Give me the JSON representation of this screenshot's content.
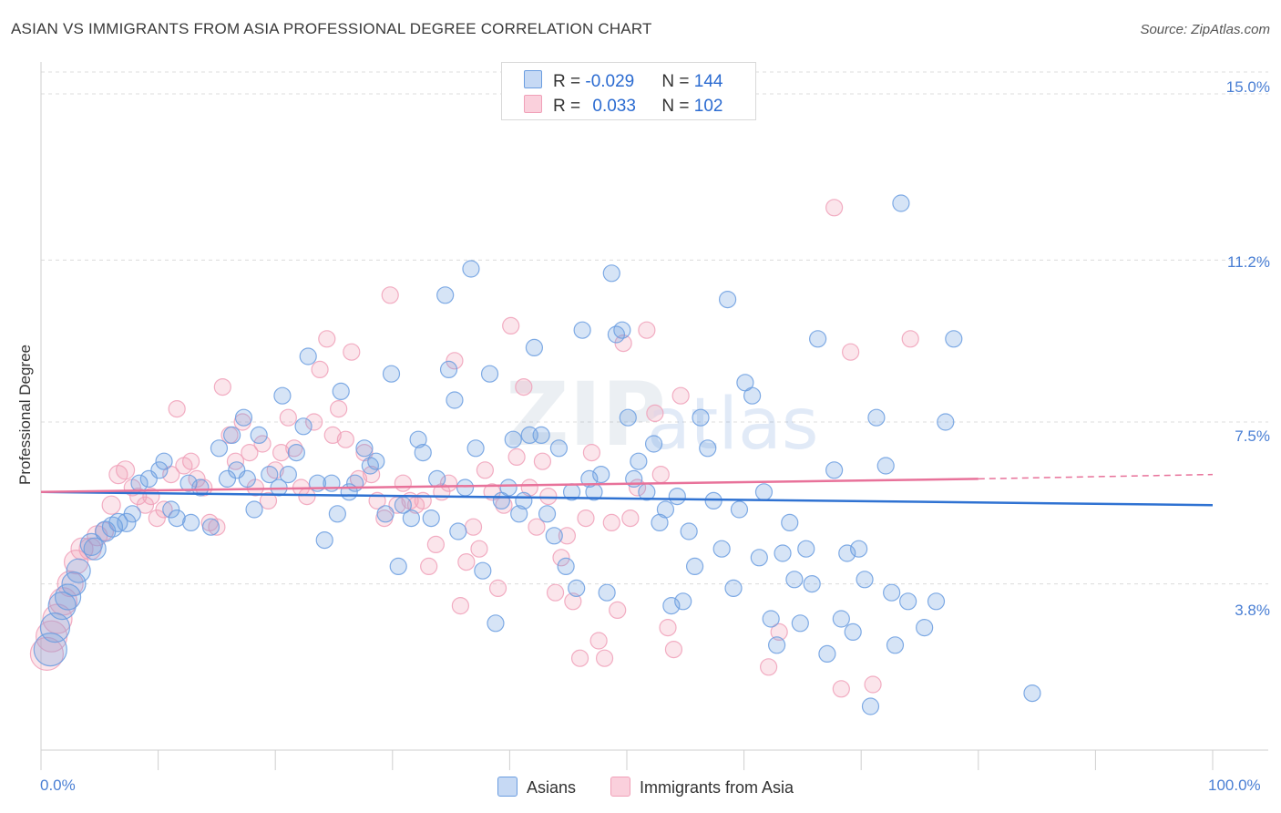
{
  "title": "ASIAN VS IMMIGRANTS FROM ASIA PROFESSIONAL DEGREE CORRELATION CHART",
  "source": "Source: ZipAtlas.com",
  "legend": {
    "row1": {
      "r_label": "R = ",
      "r_value": "-0.029",
      "n_label": "N = ",
      "n_value": "144"
    },
    "row2": {
      "r_label": "R = ",
      "r_value": "0.033",
      "n_label": "N = ",
      "n_value": "102"
    }
  },
  "bottom_legend": {
    "series1": "Asians",
    "series2": "Immigrants from Asia"
  },
  "colors": {
    "blue": "#6b9de0",
    "blue_line": "#2f72d2",
    "pink": "#f0a0b8",
    "pink_line": "#e8729a",
    "tick_text": "#4a7fd4"
  },
  "chart_data": {
    "type": "scatter",
    "title": "ASIAN VS IMMIGRANTS FROM ASIA PROFESSIONAL DEGREE CORRELATION CHART",
    "xlabel": "",
    "ylabel": "Professional Degree",
    "xlim": [
      0,
      100
    ],
    "ylim": [
      0,
      15.5
    ],
    "x_tick_labels": [
      "0.0%",
      "100.0%"
    ],
    "y_ticks": [
      3.8,
      7.5,
      11.2,
      15.0
    ],
    "y_tick_labels": [
      "3.8%",
      "7.5%",
      "11.2%",
      "15.0%"
    ],
    "grid": true,
    "watermark": "ZIPatlas",
    "series": [
      {
        "name": "Asians",
        "r": -0.029,
        "n": 144,
        "trend": {
          "x0": 0,
          "y0": 5.9,
          "x1": 100,
          "y1": 5.6
        },
        "points": [
          [
            0.8,
            2.3,
            18
          ],
          [
            1.2,
            2.8,
            16
          ],
          [
            1.8,
            3.3,
            15
          ],
          [
            2.3,
            3.5,
            14
          ],
          [
            2.8,
            3.8,
            13
          ],
          [
            3.2,
            4.1,
            13
          ],
          [
            4.6,
            4.6,
            12
          ],
          [
            4.3,
            4.7,
            12
          ],
          [
            5.5,
            5.0,
            11
          ],
          [
            6.1,
            5.1,
            11
          ],
          [
            6.6,
            5.2,
            10
          ],
          [
            7.3,
            5.2,
            10
          ],
          [
            7.8,
            5.4,
            9
          ],
          [
            8.4,
            6.1,
            9
          ],
          [
            9.2,
            6.2,
            9
          ],
          [
            10.1,
            6.4,
            9
          ],
          [
            10.5,
            6.6,
            9
          ],
          [
            11.1,
            5.5,
            9
          ],
          [
            11.6,
            5.3,
            9
          ],
          [
            12.6,
            6.1,
            9
          ],
          [
            12.8,
            5.2,
            9
          ],
          [
            13.6,
            6.0,
            9
          ],
          [
            14.5,
            5.1,
            9
          ],
          [
            15.2,
            6.9,
            9
          ],
          [
            15.9,
            6.2,
            9
          ],
          [
            16.3,
            7.2,
            9
          ],
          [
            16.7,
            6.4,
            9
          ],
          [
            17.3,
            7.6,
            9
          ],
          [
            17.6,
            6.2,
            9
          ],
          [
            18.2,
            5.5,
            9
          ],
          [
            18.6,
            7.2,
            9
          ],
          [
            19.5,
            6.3,
            9
          ],
          [
            20.3,
            6.0,
            9
          ],
          [
            20.6,
            8.1,
            9
          ],
          [
            21.1,
            6.3,
            9
          ],
          [
            21.8,
            6.8,
            9
          ],
          [
            22.4,
            7.4,
            9
          ],
          [
            22.8,
            9.0,
            9
          ],
          [
            23.6,
            6.1,
            9
          ],
          [
            24.2,
            4.8,
            9
          ],
          [
            24.8,
            6.1,
            9
          ],
          [
            25.3,
            5.4,
            9
          ],
          [
            25.6,
            8.2,
            9
          ],
          [
            26.3,
            5.9,
            9
          ],
          [
            26.8,
            6.1,
            9
          ],
          [
            27.6,
            6.9,
            9
          ],
          [
            28.1,
            6.5,
            9
          ],
          [
            28.6,
            6.6,
            9
          ],
          [
            29.4,
            5.4,
            9
          ],
          [
            29.9,
            8.6,
            9
          ],
          [
            30.5,
            4.2,
            9
          ],
          [
            30.9,
            5.6,
            9
          ],
          [
            31.6,
            5.3,
            9
          ],
          [
            32.2,
            7.1,
            9
          ],
          [
            32.6,
            6.8,
            9
          ],
          [
            33.3,
            5.3,
            9
          ],
          [
            33.8,
            6.2,
            9
          ],
          [
            34.5,
            10.4,
            9
          ],
          [
            34.8,
            8.7,
            9
          ],
          [
            35.3,
            8.0,
            9
          ],
          [
            35.6,
            5.0,
            9
          ],
          [
            36.2,
            6.0,
            9
          ],
          [
            36.7,
            11.0,
            9
          ],
          [
            37.1,
            6.9,
            9
          ],
          [
            37.7,
            4.1,
            9
          ],
          [
            38.3,
            8.6,
            9
          ],
          [
            38.8,
            2.9,
            9
          ],
          [
            39.3,
            5.7,
            9
          ],
          [
            39.9,
            6.0,
            9
          ],
          [
            40.3,
            7.1,
            9
          ],
          [
            40.8,
            5.4,
            9
          ],
          [
            41.2,
            5.7,
            9
          ],
          [
            41.7,
            7.2,
            9
          ],
          [
            42.1,
            9.2,
            9
          ],
          [
            42.7,
            7.2,
            9
          ],
          [
            43.2,
            5.4,
            9
          ],
          [
            43.8,
            4.9,
            9
          ],
          [
            44.2,
            6.9,
            9
          ],
          [
            44.8,
            4.2,
            9
          ],
          [
            45.3,
            5.9,
            9
          ],
          [
            45.7,
            3.7,
            9
          ],
          [
            46.2,
            9.6,
            9
          ],
          [
            46.8,
            6.2,
            9
          ],
          [
            47.2,
            5.9,
            9
          ],
          [
            47.8,
            6.3,
            9
          ],
          [
            48.3,
            3.6,
            9
          ],
          [
            48.7,
            10.9,
            9
          ],
          [
            49.1,
            9.5,
            9
          ],
          [
            49.6,
            9.6,
            9
          ],
          [
            50.1,
            7.6,
            9
          ],
          [
            50.6,
            6.2,
            9
          ],
          [
            51.0,
            6.6,
            9
          ],
          [
            51.7,
            5.9,
            9
          ],
          [
            52.3,
            7.0,
            9
          ],
          [
            52.8,
            5.2,
            9
          ],
          [
            53.3,
            5.5,
            9
          ],
          [
            53.8,
            3.3,
            9
          ],
          [
            54.3,
            5.8,
            9
          ],
          [
            54.8,
            3.4,
            9
          ],
          [
            55.3,
            5.0,
            9
          ],
          [
            55.8,
            4.2,
            9
          ],
          [
            56.3,
            7.6,
            9
          ],
          [
            56.9,
            6.9,
            9
          ],
          [
            57.4,
            5.7,
            9
          ],
          [
            58.1,
            4.6,
            9
          ],
          [
            58.6,
            10.3,
            9
          ],
          [
            59.1,
            3.7,
            9
          ],
          [
            59.6,
            5.5,
            9
          ],
          [
            60.1,
            8.4,
            9
          ],
          [
            60.7,
            8.1,
            9
          ],
          [
            61.3,
            4.4,
            9
          ],
          [
            61.7,
            5.9,
            9
          ],
          [
            62.3,
            3.0,
            9
          ],
          [
            62.8,
            2.4,
            9
          ],
          [
            63.3,
            4.5,
            9
          ],
          [
            63.9,
            5.2,
            9
          ],
          [
            64.3,
            3.9,
            9
          ],
          [
            64.8,
            2.9,
            9
          ],
          [
            65.3,
            4.6,
            9
          ],
          [
            65.8,
            3.8,
            9
          ],
          [
            66.3,
            9.4,
            9
          ],
          [
            67.1,
            2.2,
            9
          ],
          [
            67.7,
            6.4,
            9
          ],
          [
            68.3,
            3.0,
            9
          ],
          [
            68.8,
            4.5,
            9
          ],
          [
            69.3,
            2.7,
            9
          ],
          [
            69.8,
            4.6,
            9
          ],
          [
            70.3,
            3.9,
            9
          ],
          [
            70.8,
            1.0,
            9
          ],
          [
            71.3,
            7.6,
            9
          ],
          [
            72.1,
            6.5,
            9
          ],
          [
            72.6,
            3.6,
            9
          ],
          [
            72.9,
            2.4,
            9
          ],
          [
            73.4,
            12.5,
            9
          ],
          [
            74.0,
            3.4,
            9
          ],
          [
            75.4,
            2.8,
            9
          ],
          [
            76.4,
            3.4,
            9
          ],
          [
            77.2,
            7.5,
            9
          ],
          [
            77.9,
            9.4,
            9
          ],
          [
            84.6,
            1.3,
            9
          ]
        ]
      },
      {
        "name": "Immigrants from Asia",
        "r": 0.033,
        "n": 102,
        "trend": {
          "x0": 0,
          "y0": 5.9,
          "x1": 80,
          "y1": 6.2,
          "dash_to": 100,
          "dash_y": 6.3
        },
        "points": [
          [
            0.5,
            2.2,
            18
          ],
          [
            0.9,
            2.6,
            17
          ],
          [
            1.4,
            3.0,
            16
          ],
          [
            1.9,
            3.4,
            15
          ],
          [
            2.5,
            3.8,
            14
          ],
          [
            3.0,
            4.3,
            13
          ],
          [
            3.5,
            4.6,
            12
          ],
          [
            4.2,
            4.6,
            12
          ],
          [
            4.8,
            4.9,
            11
          ],
          [
            5.4,
            5.0,
            10
          ],
          [
            6.0,
            5.6,
            10
          ],
          [
            6.6,
            6.3,
            10
          ],
          [
            7.2,
            6.4,
            10
          ],
          [
            7.8,
            6.0,
            9
          ],
          [
            8.3,
            5.8,
            9
          ],
          [
            8.9,
            5.6,
            9
          ],
          [
            9.4,
            5.8,
            9
          ],
          [
            9.9,
            5.3,
            9
          ],
          [
            10.5,
            5.5,
            9
          ],
          [
            11.1,
            6.3,
            9
          ],
          [
            11.6,
            7.8,
            9
          ],
          [
            12.2,
            6.5,
            9
          ],
          [
            12.8,
            6.6,
            9
          ],
          [
            13.3,
            6.2,
            9
          ],
          [
            13.9,
            6.0,
            9
          ],
          [
            14.4,
            5.2,
            9
          ],
          [
            15.0,
            5.1,
            9
          ],
          [
            15.5,
            8.3,
            9
          ],
          [
            16.1,
            7.2,
            9
          ],
          [
            16.6,
            6.6,
            9
          ],
          [
            17.2,
            7.5,
            9
          ],
          [
            17.8,
            6.8,
            9
          ],
          [
            18.3,
            6.0,
            9
          ],
          [
            18.9,
            7.0,
            9
          ],
          [
            19.4,
            5.7,
            9
          ],
          [
            20.0,
            6.4,
            9
          ],
          [
            20.5,
            6.8,
            9
          ],
          [
            21.1,
            7.6,
            9
          ],
          [
            21.6,
            6.9,
            9
          ],
          [
            22.2,
            6.0,
            9
          ],
          [
            22.7,
            5.8,
            9
          ],
          [
            23.3,
            7.5,
            9
          ],
          [
            23.8,
            8.7,
            9
          ],
          [
            24.4,
            9.4,
            9
          ],
          [
            24.9,
            7.2,
            9
          ],
          [
            25.4,
            7.8,
            9
          ],
          [
            26.0,
            7.1,
            9
          ],
          [
            26.5,
            9.1,
            9
          ],
          [
            27.1,
            6.2,
            9
          ],
          [
            27.6,
            6.8,
            9
          ],
          [
            28.2,
            6.3,
            9
          ],
          [
            28.7,
            5.7,
            9
          ],
          [
            29.3,
            5.3,
            9
          ],
          [
            29.8,
            10.4,
            9
          ],
          [
            30.4,
            5.6,
            9
          ],
          [
            30.9,
            6.1,
            9
          ],
          [
            31.5,
            5.7,
            9
          ],
          [
            32.0,
            5.6,
            9
          ],
          [
            32.6,
            5.7,
            9
          ],
          [
            33.1,
            4.2,
            9
          ],
          [
            33.7,
            4.7,
            9
          ],
          [
            34.2,
            5.9,
            9
          ],
          [
            34.8,
            6.1,
            9
          ],
          [
            35.3,
            8.9,
            9
          ],
          [
            35.8,
            3.3,
            9
          ],
          [
            36.3,
            4.3,
            9
          ],
          [
            36.9,
            5.1,
            9
          ],
          [
            37.4,
            4.6,
            9
          ],
          [
            37.9,
            6.4,
            9
          ],
          [
            38.5,
            5.9,
            9
          ],
          [
            39.0,
            3.7,
            9
          ],
          [
            39.5,
            5.6,
            9
          ],
          [
            40.1,
            9.7,
            9
          ],
          [
            40.6,
            6.7,
            9
          ],
          [
            41.2,
            8.3,
            9
          ],
          [
            41.7,
            6.0,
            9
          ],
          [
            42.3,
            5.1,
            9
          ],
          [
            42.8,
            6.6,
            9
          ],
          [
            43.3,
            5.8,
            9
          ],
          [
            43.9,
            3.6,
            9
          ],
          [
            44.4,
            4.4,
            9
          ],
          [
            44.9,
            4.9,
            9
          ],
          [
            45.4,
            3.4,
            9
          ],
          [
            46.0,
            2.1,
            9
          ],
          [
            46.5,
            5.3,
            9
          ],
          [
            47.0,
            6.8,
            9
          ],
          [
            47.6,
            2.5,
            9
          ],
          [
            48.1,
            2.1,
            9
          ],
          [
            48.7,
            5.2,
            9
          ],
          [
            49.2,
            3.2,
            9
          ],
          [
            49.7,
            9.3,
            9
          ],
          [
            50.3,
            5.3,
            9
          ],
          [
            50.9,
            6.0,
            9
          ],
          [
            51.7,
            9.6,
            9
          ],
          [
            52.4,
            7.7,
            9
          ],
          [
            52.9,
            6.3,
            9
          ],
          [
            53.5,
            2.8,
            9
          ],
          [
            54.0,
            2.3,
            9
          ],
          [
            54.6,
            8.1,
            9
          ],
          [
            62.1,
            1.9,
            9
          ],
          [
            63.0,
            2.7,
            9
          ],
          [
            67.7,
            12.4,
            9
          ],
          [
            68.3,
            1.4,
            9
          ],
          [
            69.1,
            9.1,
            9
          ],
          [
            71.0,
            1.5,
            9
          ],
          [
            74.2,
            9.4,
            9
          ]
        ]
      }
    ]
  }
}
